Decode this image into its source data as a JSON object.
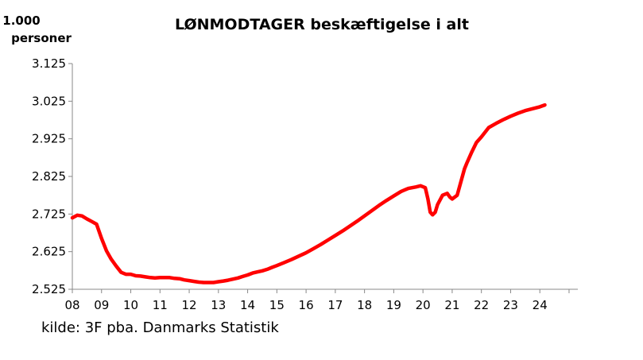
{
  "chart_data": {
    "type": "line",
    "title": "LØNMODTAGER beskæftigelse i alt",
    "unit_line1": "1.000",
    "unit_line2": "personer",
    "source": "kilde: 3F pba. Danmarks Statistik",
    "y_ticks": [
      "3.125",
      "3.025",
      "2.925",
      "2.825",
      "2.725",
      "2.625",
      "2.525"
    ],
    "x_ticks": [
      "08",
      "09",
      "10",
      "11",
      "12",
      "13",
      "14",
      "15",
      "16",
      "17",
      "18",
      "19",
      "20",
      "21",
      "22",
      "23",
      "24"
    ],
    "ylim": [
      2525,
      3125
    ],
    "xlim": [
      2008,
      2025.3
    ],
    "grid": false,
    "line_color": "#ff0000",
    "series": [
      {
        "x": [
          2008.0,
          2008.17,
          2008.33,
          2008.5,
          2008.67,
          2008.83,
          2009.0,
          2009.17,
          2009.33,
          2009.5,
          2009.67,
          2009.83,
          2010.0,
          2010.17,
          2010.33,
          2010.5,
          2010.67,
          2010.83,
          2011.0,
          2011.17,
          2011.33,
          2011.5,
          2011.67,
          2011.83,
          2012.0,
          2012.17,
          2012.33,
          2012.5,
          2012.67,
          2012.83,
          2013.0,
          2013.17,
          2013.33,
          2013.5,
          2013.67,
          2013.83,
          2014.0,
          2014.17,
          2014.33,
          2014.5,
          2014.67,
          2014.83,
          2015.0,
          2015.25,
          2015.5,
          2015.75,
          2016.0,
          2016.25,
          2016.5,
          2016.75,
          2017.0,
          2017.25,
          2017.5,
          2017.75,
          2018.0,
          2018.25,
          2018.5,
          2018.75,
          2019.0,
          2019.25,
          2019.5,
          2019.75,
          2019.92,
          2020.08,
          2020.17,
          2020.25,
          2020.33,
          2020.42,
          2020.5,
          2020.67,
          2020.83,
          2020.92,
          2021.0,
          2021.17,
          2021.33,
          2021.42,
          2021.5,
          2021.67,
          2021.83,
          2022.0,
          2022.25,
          2022.5,
          2022.75,
          2023.0,
          2023.25,
          2023.5,
          2023.75,
          2024.0,
          2024.17
        ],
        "y": [
          2715,
          2722,
          2720,
          2712,
          2705,
          2698,
          2660,
          2627,
          2605,
          2587,
          2570,
          2565,
          2565,
          2561,
          2560,
          2558,
          2556,
          2555,
          2556,
          2556,
          2556,
          2554,
          2553,
          2550,
          2548,
          2546,
          2544,
          2543,
          2543,
          2543,
          2545,
          2547,
          2549,
          2552,
          2555,
          2559,
          2563,
          2568,
          2571,
          2574,
          2578,
          2583,
          2588,
          2596,
          2604,
          2613,
          2622,
          2633,
          2644,
          2656,
          2668,
          2680,
          2693,
          2706,
          2720,
          2734,
          2748,
          2761,
          2773,
          2785,
          2793,
          2797,
          2800,
          2795,
          2765,
          2730,
          2723,
          2730,
          2750,
          2775,
          2780,
          2770,
          2765,
          2775,
          2820,
          2845,
          2860,
          2890,
          2915,
          2930,
          2955,
          2966,
          2976,
          2985,
          2993,
          3000,
          3005,
          3010,
          3015
        ]
      }
    ]
  }
}
